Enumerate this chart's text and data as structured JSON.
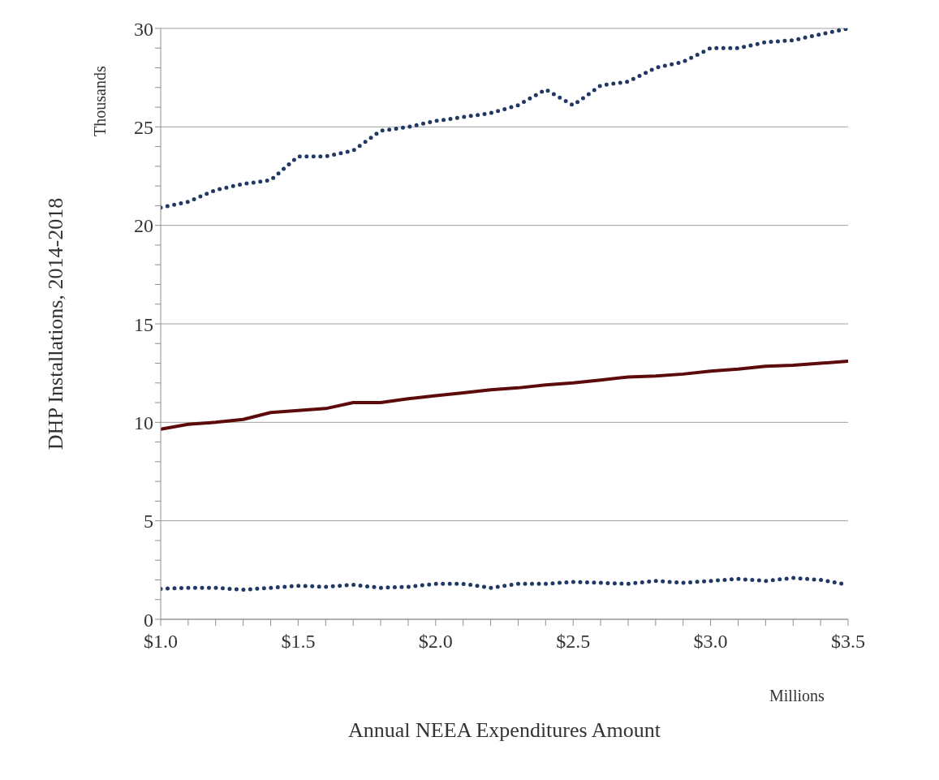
{
  "chart_data": {
    "type": "line",
    "xlabel": "Annual NEEA Expenditures Amount",
    "ylabel": "DHP Installations, 2014-2018",
    "annotations": [
      "Thousands",
      "Millions"
    ],
    "x": [
      1.0,
      1.1,
      1.2,
      1.3,
      1.4,
      1.5,
      1.6,
      1.7,
      1.8,
      1.9,
      2.0,
      2.1,
      2.2,
      2.3,
      2.4,
      2.5,
      2.6,
      2.7,
      2.8,
      2.9,
      3.0,
      3.1,
      3.2,
      3.3,
      3.4,
      3.5
    ],
    "series": [
      {
        "color": "#1f3864",
        "line_style": "dotted",
        "values": [
          20.9,
          21.2,
          21.8,
          22.1,
          22.3,
          23.5,
          23.5,
          23.8,
          24.8,
          25.0,
          25.3,
          25.5,
          25.7,
          26.1,
          26.9,
          26.1,
          27.1,
          27.3,
          28.0,
          28.3,
          29.0,
          29.0,
          29.3,
          29.4,
          29.7,
          30.0
        ]
      },
      {
        "color": "#5c0a0a",
        "line_style": "solid",
        "values": [
          9.65,
          9.9,
          10.0,
          10.15,
          10.5,
          10.6,
          10.7,
          11.0,
          11.0,
          11.2,
          11.35,
          11.5,
          11.65,
          11.75,
          11.9,
          12.0,
          12.15,
          12.3,
          12.35,
          12.45,
          12.6,
          12.7,
          12.85,
          12.9,
          13.0,
          13.1
        ]
      },
      {
        "color": "#1f3864",
        "line_style": "dotted",
        "values": [
          1.55,
          1.6,
          1.6,
          1.5,
          1.6,
          1.7,
          1.65,
          1.75,
          1.6,
          1.65,
          1.8,
          1.8,
          1.6,
          1.8,
          1.8,
          1.9,
          1.85,
          1.8,
          1.95,
          1.85,
          1.95,
          2.05,
          1.95,
          2.1,
          2.0,
          1.75
        ]
      }
    ],
    "xlim": [
      1.0,
      3.5
    ],
    "xticks": [
      {
        "value": 1.0,
        "label": "$1.0"
      },
      {
        "value": 1.1,
        "label": null
      },
      {
        "value": 1.2,
        "label": null
      },
      {
        "value": 1.3,
        "label": null
      },
      {
        "value": 1.4,
        "label": null
      },
      {
        "value": 1.5,
        "label": "$1.5"
      },
      {
        "value": 1.6,
        "label": null
      },
      {
        "value": 1.7,
        "label": null
      },
      {
        "value": 1.8,
        "label": null
      },
      {
        "value": 1.9,
        "label": null
      },
      {
        "value": 2.0,
        "label": "$2.0"
      },
      {
        "value": 2.1,
        "label": null
      },
      {
        "value": 2.2,
        "label": null
      },
      {
        "value": 2.3,
        "label": null
      },
      {
        "value": 2.4,
        "label": null
      },
      {
        "value": 2.5,
        "label": "$2.5"
      },
      {
        "value": 2.6,
        "label": null
      },
      {
        "value": 2.7,
        "label": null
      },
      {
        "value": 2.8,
        "label": null
      },
      {
        "value": 2.9,
        "label": null
      },
      {
        "value": 3.0,
        "label": "$3.0"
      },
      {
        "value": 3.1,
        "label": null
      },
      {
        "value": 3.2,
        "label": null
      },
      {
        "value": 3.3,
        "label": null
      },
      {
        "value": 3.4,
        "label": null
      },
      {
        "value": 3.5,
        "label": "$3.5"
      }
    ],
    "ylim": [
      0,
      30
    ],
    "yticks": [
      0,
      {
        "value": 1,
        "label": null
      },
      {
        "value": 2,
        "label": null
      },
      {
        "value": 3,
        "label": null
      },
      {
        "value": 4,
        "label": null
      },
      5,
      {
        "value": 6,
        "label": null
      },
      {
        "value": 7,
        "label": null
      },
      {
        "value": 8,
        "label": null
      },
      {
        "value": 9,
        "label": null
      },
      10,
      {
        "value": 11,
        "label": null
      },
      {
        "value": 12,
        "label": null
      },
      {
        "value": 13,
        "label": null
      },
      {
        "value": 14,
        "label": null
      },
      15,
      {
        "value": 16,
        "label": null
      },
      {
        "value": 17,
        "label": null
      },
      {
        "value": 18,
        "label": null
      },
      {
        "value": 19,
        "label": null
      },
      20,
      {
        "value": 21,
        "label": null
      },
      {
        "value": 22,
        "label": null
      },
      {
        "value": 23,
        "label": null
      },
      {
        "value": 24,
        "label": null
      },
      25,
      {
        "value": 26,
        "label": null
      },
      {
        "value": 27,
        "label": null
      },
      {
        "value": 28,
        "label": null
      },
      {
        "value": 29,
        "label": null
      },
      30
    ],
    "grid": "y"
  }
}
